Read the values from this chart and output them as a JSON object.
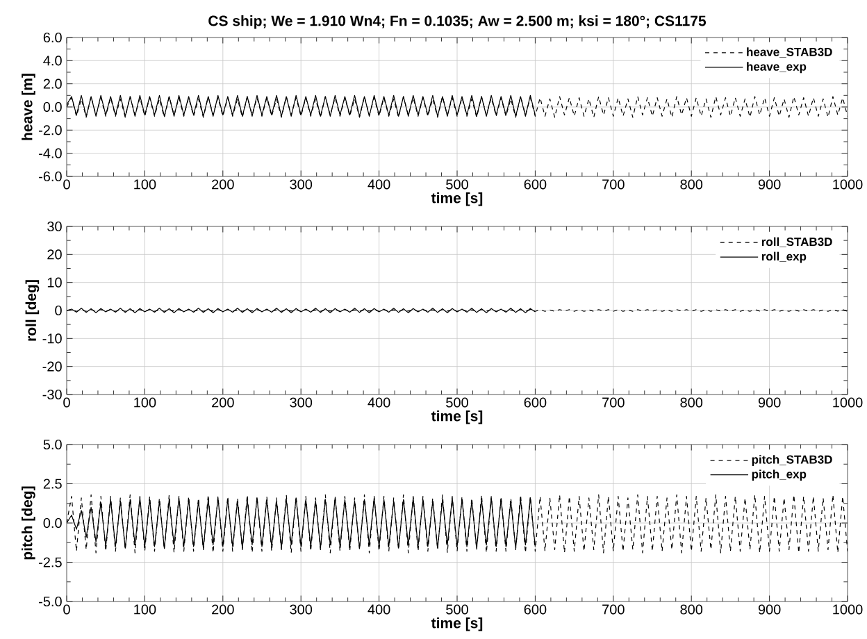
{
  "chart_data": [
    {
      "type": "line",
      "title": "CS ship; We = 1.910 Wn4; Fn = 0.1035; Aw = 2.500 m; ksi = 180°; CS1175",
      "xlabel": "time [s]",
      "ylabel": "heave [m]",
      "xlim": [
        0,
        1000
      ],
      "ylim": [
        -6,
        6
      ],
      "xticks": [
        0,
        100,
        200,
        300,
        400,
        500,
        600,
        700,
        800,
        900,
        1000
      ],
      "yticks": [
        {
          "value": -6,
          "label": "-6.0"
        },
        {
          "value": -4,
          "label": "-4.0"
        },
        {
          "value": -2,
          "label": "-2.0"
        },
        {
          "value": 0,
          "label": "0.0"
        },
        {
          "value": 2,
          "label": "2.0"
        },
        {
          "value": 4,
          "label": "4.0"
        },
        {
          "value": 6,
          "label": "6.0"
        }
      ],
      "grid": true,
      "legend": "top right",
      "marker": "none",
      "x": [
        0,
        6.25,
        12.5,
        18.75,
        25,
        31.25,
        37.5,
        43.75,
        50,
        56.25,
        62.5,
        68.75,
        75,
        81.25,
        87.5,
        93.75,
        100,
        106.25,
        112.5,
        118.75,
        125,
        131.25,
        137.5,
        143.75,
        150,
        156.25,
        162.5,
        168.75,
        175,
        181.25,
        187.5,
        193.75,
        200,
        206.25,
        212.5,
        218.75,
        225,
        231.25,
        237.5,
        243.75,
        250,
        256.25,
        262.5,
        268.75,
        275,
        281.25,
        287.5,
        293.75,
        300,
        306.25,
        312.5,
        318.75,
        325,
        331.25,
        337.5,
        343.75,
        350,
        356.25,
        362.5,
        368.75,
        375,
        381.25,
        387.5,
        393.75,
        400,
        406.25,
        412.5,
        418.75,
        425,
        431.25,
        437.5,
        443.75,
        450,
        456.25,
        462.5,
        468.75,
        475,
        481.25,
        487.5,
        493.75,
        500,
        506.25,
        512.5,
        518.75,
        525,
        531.25,
        537.5,
        543.75,
        550,
        556.25,
        562.5,
        568.75,
        575,
        581.25,
        587.5,
        593.75,
        600,
        606.25,
        612.5,
        618.75,
        625,
        631.25,
        637.5,
        643.75,
        650,
        656.25,
        662.5,
        668.75,
        675,
        681.25,
        687.5,
        693.75,
        700,
        706.25,
        712.5,
        718.75,
        725,
        731.25,
        737.5,
        743.75,
        750,
        756.25,
        762.5,
        768.75,
        775,
        781.25,
        787.5,
        793.75,
        800,
        806.25,
        812.5,
        818.75,
        825,
        831.25,
        837.5,
        843.75,
        850,
        856.25,
        862.5,
        868.75,
        875,
        881.25,
        887.5,
        893.75,
        900,
        906.25,
        912.5,
        918.75,
        925,
        931.25,
        937.5,
        943.75,
        950,
        956.25,
        962.5,
        968.75,
        975,
        981.25,
        987.5,
        993.75,
        1000
      ],
      "series": [
        {
          "name": "heave_STAB3D",
          "color": "#000000",
          "line_style": "dashed",
          "values": [
            0.0,
            0.8,
            -0.8,
            0.7,
            -0.9,
            0.9,
            -0.7,
            0.8,
            -0.8,
            0.8,
            -0.8,
            0.7,
            -0.9,
            0.9,
            -0.7,
            0.8,
            -0.8,
            0.8,
            -0.8,
            0.7,
            -0.9,
            0.9,
            -0.7,
            0.8,
            -0.8,
            0.8,
            -0.8,
            0.7,
            -0.9,
            0.9,
            -0.7,
            0.8,
            -0.8,
            0.8,
            -0.8,
            0.7,
            -0.9,
            0.9,
            -0.7,
            0.8,
            -0.8,
            0.8,
            -0.8,
            0.7,
            -0.9,
            0.9,
            -0.7,
            0.8,
            -0.8,
            0.8,
            -0.8,
            0.7,
            -0.9,
            0.9,
            -0.7,
            0.8,
            -0.8,
            0.8,
            -0.8,
            0.7,
            -0.9,
            0.9,
            -0.7,
            0.8,
            -0.8,
            0.8,
            -0.8,
            0.7,
            -0.9,
            0.9,
            -0.7,
            0.8,
            -0.8,
            0.8,
            -0.8,
            0.7,
            -0.9,
            0.9,
            -0.7,
            0.8,
            -0.8,
            0.8,
            -0.8,
            0.7,
            -0.9,
            0.9,
            -0.7,
            0.8,
            -0.8,
            0.8,
            -0.8,
            0.7,
            -0.9,
            0.9,
            -0.7,
            0.8,
            -0.8,
            0.8,
            -0.8,
            0.7,
            -0.9,
            0.9,
            -0.7,
            0.8,
            -0.8,
            0.8,
            -0.8,
            0.7,
            -0.9,
            0.9,
            -0.7,
            0.8,
            -0.8,
            0.8,
            -0.8,
            0.7,
            -0.9,
            0.9,
            -0.7,
            0.8,
            -0.8,
            0.8,
            -0.8,
            0.7,
            -0.9,
            0.9,
            -0.7,
            0.8,
            -0.8,
            0.8,
            -0.8,
            0.7,
            -0.9,
            0.9,
            -0.7,
            0.8,
            -0.8,
            0.8,
            -0.8,
            0.7,
            -0.9,
            0.9,
            -0.7,
            0.8,
            -0.8,
            0.8,
            -0.8,
            0.7,
            -0.9,
            0.9,
            -0.7,
            0.8,
            -0.8,
            0.8,
            -0.8,
            0.7,
            -0.9,
            0.9,
            -0.7,
            0.8,
            -0.8
          ]
        },
        {
          "name": "heave_exp",
          "color": "#000000",
          "line_style": "solid",
          "values": [
            0.2,
            0.9,
            -0.7,
            1.0,
            -0.8,
            0.9,
            -0.8,
            1.0,
            -0.7,
            0.9,
            -0.7,
            1.0,
            -0.8,
            0.9,
            -0.8,
            1.0,
            -0.7,
            0.9,
            -0.7,
            1.0,
            -0.8,
            0.9,
            -0.8,
            1.0,
            -0.7,
            0.9,
            -0.7,
            1.0,
            -0.8,
            0.9,
            -0.8,
            1.0,
            -0.7,
            0.9,
            -0.7,
            1.0,
            -0.8,
            0.9,
            -0.8,
            1.0,
            -0.7,
            0.9,
            -0.7,
            1.0,
            -0.8,
            0.9,
            -0.8,
            1.0,
            -0.7,
            0.9,
            -0.7,
            1.0,
            -0.8,
            0.9,
            -0.8,
            1.0,
            -0.7,
            0.9,
            -0.7,
            1.0,
            -0.8,
            0.9,
            -0.8,
            1.0,
            -0.7,
            0.9,
            -0.7,
            1.0,
            -0.8,
            0.9,
            -0.8,
            1.0,
            -0.7,
            0.9,
            -0.7,
            1.0,
            -0.8,
            0.9,
            -0.8,
            1.0,
            -0.7,
            0.9,
            -0.7,
            1.0,
            -0.8,
            0.9,
            -0.8,
            1.0,
            -0.7,
            0.9,
            -0.7,
            1.0,
            -0.8,
            0.9,
            -0.8,
            1.0,
            -0.7,
            null,
            null,
            null,
            null,
            null,
            null,
            null,
            null,
            null,
            null,
            null,
            null,
            null,
            null,
            null,
            null,
            null,
            null,
            null,
            null,
            null,
            null,
            null,
            null,
            null,
            null,
            null,
            null,
            null,
            null,
            null,
            null,
            null,
            null,
            null,
            null,
            null,
            null,
            null,
            null,
            null,
            null,
            null,
            null,
            null,
            null,
            null,
            null,
            null,
            null,
            null,
            null,
            null,
            null,
            null,
            null,
            null,
            null,
            null,
            null,
            null,
            null,
            null,
            null
          ]
        }
      ]
    },
    {
      "type": "line",
      "xlabel": "time [s]",
      "ylabel": "roll [deg]",
      "xlim": [
        0,
        1000
      ],
      "ylim": [
        -30,
        30
      ],
      "xticks": [
        0,
        100,
        200,
        300,
        400,
        500,
        600,
        700,
        800,
        900,
        1000
      ],
      "yticks": [
        -30,
        -20,
        -10,
        0,
        10,
        20,
        30
      ],
      "grid": true,
      "legend": "top right",
      "marker": "none",
      "x": [
        0,
        6.25,
        12.5,
        18.75,
        25,
        31.25,
        37.5,
        43.75,
        50,
        56.25,
        62.5,
        68.75,
        75,
        81.25,
        87.5,
        93.75,
        100,
        106.25,
        112.5,
        118.75,
        125,
        131.25,
        137.5,
        143.75,
        150,
        156.25,
        162.5,
        168.75,
        175,
        181.25,
        187.5,
        193.75,
        200,
        206.25,
        212.5,
        218.75,
        225,
        231.25,
        237.5,
        243.75,
        250,
        256.25,
        262.5,
        268.75,
        275,
        281.25,
        287.5,
        293.75,
        300,
        306.25,
        312.5,
        318.75,
        325,
        331.25,
        337.5,
        343.75,
        350,
        356.25,
        362.5,
        368.75,
        375,
        381.25,
        387.5,
        393.75,
        400,
        406.25,
        412.5,
        418.75,
        425,
        431.25,
        437.5,
        443.75,
        450,
        456.25,
        462.5,
        468.75,
        475,
        481.25,
        487.5,
        493.75,
        500,
        506.25,
        512.5,
        518.75,
        525,
        531.25,
        537.5,
        543.75,
        550,
        556.25,
        562.5,
        568.75,
        575,
        581.25,
        587.5,
        593.75,
        600,
        606.25,
        612.5,
        618.75,
        625,
        631.25,
        637.5,
        643.75,
        650,
        656.25,
        662.5,
        668.75,
        675,
        681.25,
        687.5,
        693.75,
        700,
        706.25,
        712.5,
        718.75,
        725,
        731.25,
        737.5,
        743.75,
        750,
        756.25,
        762.5,
        768.75,
        775,
        781.25,
        787.5,
        793.75,
        800,
        806.25,
        812.5,
        818.75,
        825,
        831.25,
        837.5,
        843.75,
        850,
        856.25,
        862.5,
        868.75,
        875,
        881.25,
        887.5,
        893.75,
        900,
        906.25,
        912.5,
        918.75,
        925,
        931.25,
        937.5,
        943.75,
        950,
        956.25,
        962.5,
        968.75,
        975,
        981.25,
        987.5,
        993.75,
        1000
      ],
      "series": [
        {
          "name": "roll_STAB3D",
          "color": "#000000",
          "line_style": "dashed",
          "values": [
            0,
            0.3,
            -0.3,
            0.2,
            -0.3,
            0.3,
            -0.2,
            0.3,
            -0.3,
            0.3,
            -0.3,
            0.2,
            -0.3,
            0.3,
            -0.2,
            0.3,
            -0.3,
            0.3,
            -0.3,
            0.2,
            -0.3,
            0.3,
            -0.2,
            0.3,
            -0.3,
            0.3,
            -0.3,
            0.2,
            -0.3,
            0.3,
            -0.2,
            0.3,
            -0.3,
            0.3,
            -0.3,
            0.2,
            -0.3,
            0.3,
            -0.2,
            0.3,
            -0.3,
            0.3,
            -0.3,
            0.2,
            -0.3,
            0.3,
            -0.2,
            0.3,
            -0.3,
            0.3,
            -0.3,
            0.2,
            -0.3,
            0.3,
            -0.2,
            0.3,
            -0.3,
            0.3,
            -0.3,
            0.2,
            -0.3,
            0.3,
            -0.2,
            0.3,
            -0.3,
            0.3,
            -0.3,
            0.2,
            -0.3,
            0.3,
            -0.2,
            0.3,
            -0.3,
            0.3,
            -0.3,
            0.2,
            -0.3,
            0.3,
            -0.2,
            0.3,
            -0.3,
            0.3,
            -0.3,
            0.2,
            -0.3,
            0.3,
            -0.2,
            0.3,
            -0.3,
            0.3,
            -0.3,
            0.2,
            -0.3,
            0.3,
            -0.2,
            0.3,
            -0.3,
            0.3,
            -0.3,
            0.2,
            -0.3,
            0.3,
            -0.2,
            0.3,
            -0.3,
            0.3,
            -0.3,
            0.2,
            -0.3,
            0.3,
            -0.2,
            0.3,
            -0.3,
            0.3,
            -0.3,
            0.2,
            -0.3,
            0.3,
            -0.2,
            0.3,
            -0.3,
            0.3,
            -0.3,
            0.2,
            -0.3,
            0.3,
            -0.2,
            0.3,
            -0.3,
            0.3,
            -0.3,
            0.2,
            -0.3,
            0.3,
            -0.2,
            0.3,
            -0.3,
            0.3,
            -0.3,
            0.2,
            -0.3,
            0.3,
            -0.2,
            0.3,
            -0.3,
            0.3,
            -0.3,
            0.2,
            -0.3,
            0.3,
            -0.2,
            0.3,
            -0.3,
            0.3,
            -0.3,
            0.2,
            -0.3,
            0.3,
            -0.2,
            0.3,
            -0.3
          ]
        },
        {
          "name": "roll_exp",
          "color": "#000000",
          "line_style": "solid",
          "values": [
            0,
            0.5,
            -0.6,
            0.8,
            -0.7,
            0.6,
            -0.8,
            0.7,
            -0.5,
            0.5,
            -0.6,
            0.8,
            -0.7,
            0.6,
            -0.8,
            0.7,
            -0.5,
            0.5,
            -0.6,
            0.8,
            -0.7,
            0.6,
            -0.8,
            0.7,
            -0.5,
            0.5,
            -0.6,
            0.8,
            -0.7,
            0.6,
            -0.8,
            0.7,
            -0.5,
            0.5,
            -0.6,
            0.8,
            -0.7,
            0.6,
            -0.8,
            0.7,
            -0.5,
            0.5,
            -0.6,
            0.8,
            -0.7,
            0.6,
            -0.8,
            0.7,
            -0.5,
            0.5,
            -0.6,
            0.8,
            -0.7,
            0.6,
            -0.8,
            0.7,
            -0.5,
            0.5,
            -0.6,
            0.8,
            -0.7,
            0.6,
            -0.8,
            0.7,
            -0.5,
            0.5,
            -0.6,
            0.8,
            -0.7,
            0.6,
            -0.8,
            0.7,
            -0.5,
            0.5,
            -0.6,
            0.8,
            -0.7,
            0.6,
            -0.8,
            0.7,
            -0.5,
            0.5,
            -0.6,
            0.8,
            -0.7,
            0.6,
            -0.8,
            0.7,
            -0.5,
            0.5,
            -0.6,
            0.8,
            -0.7,
            0.6,
            -0.8,
            0.7,
            -0.5,
            null,
            null,
            null,
            null,
            null,
            null,
            null,
            null,
            null,
            null,
            null,
            null,
            null,
            null,
            null,
            null,
            null,
            null,
            null,
            null,
            null,
            null,
            null,
            null,
            null,
            null,
            null,
            null,
            null,
            null,
            null,
            null,
            null,
            null,
            null,
            null,
            null,
            null,
            null,
            null,
            null,
            null,
            null,
            null,
            null,
            null,
            null,
            null,
            null,
            null,
            null,
            null,
            null,
            null,
            null,
            null,
            null,
            null,
            null,
            null,
            null,
            null,
            null,
            null
          ]
        }
      ]
    },
    {
      "type": "line",
      "xlabel": "time [s]",
      "ylabel": "pitch [deg]",
      "xlim": [
        0,
        1000
      ],
      "ylim": [
        -5,
        5
      ],
      "xticks": [
        0,
        100,
        200,
        300,
        400,
        500,
        600,
        700,
        800,
        900,
        1000
      ],
      "yticks": [
        {
          "value": -5,
          "label": "-5.0"
        },
        {
          "value": -2.5,
          "label": "-2.5"
        },
        {
          "value": 0,
          "label": "0.0"
        },
        {
          "value": 2.5,
          "label": "2.5"
        },
        {
          "value": 5,
          "label": "5.0"
        }
      ],
      "grid": true,
      "legend": "top right",
      "marker": "none",
      "x": [
        0,
        6.25,
        12.5,
        18.75,
        25,
        31.25,
        37.5,
        43.75,
        50,
        56.25,
        62.5,
        68.75,
        75,
        81.25,
        87.5,
        93.75,
        100,
        106.25,
        112.5,
        118.75,
        125,
        131.25,
        137.5,
        143.75,
        150,
        156.25,
        162.5,
        168.75,
        175,
        181.25,
        187.5,
        193.75,
        200,
        206.25,
        212.5,
        218.75,
        225,
        231.25,
        237.5,
        243.75,
        250,
        256.25,
        262.5,
        268.75,
        275,
        281.25,
        287.5,
        293.75,
        300,
        306.25,
        312.5,
        318.75,
        325,
        331.25,
        337.5,
        343.75,
        350,
        356.25,
        362.5,
        368.75,
        375,
        381.25,
        387.5,
        393.75,
        400,
        406.25,
        412.5,
        418.75,
        425,
        431.25,
        437.5,
        443.75,
        450,
        456.25,
        462.5,
        468.75,
        475,
        481.25,
        487.5,
        493.75,
        500,
        506.25,
        512.5,
        518.75,
        525,
        531.25,
        537.5,
        543.75,
        550,
        556.25,
        562.5,
        568.75,
        575,
        581.25,
        587.5,
        593.75,
        600,
        606.25,
        612.5,
        618.75,
        625,
        631.25,
        637.5,
        643.75,
        650,
        656.25,
        662.5,
        668.75,
        675,
        681.25,
        687.5,
        693.75,
        700,
        706.25,
        712.5,
        718.75,
        725,
        731.25,
        737.5,
        743.75,
        750,
        756.25,
        762.5,
        768.75,
        775,
        781.25,
        787.5,
        793.75,
        800,
        806.25,
        812.5,
        818.75,
        825,
        831.25,
        837.5,
        843.75,
        850,
        856.25,
        862.5,
        868.75,
        875,
        881.25,
        887.5,
        893.75,
        900,
        906.25,
        912.5,
        918.75,
        925,
        931.25,
        937.5,
        943.75,
        950,
        956.25,
        962.5,
        968.75,
        975,
        981.25,
        987.5,
        993.75,
        1000
      ],
      "series": [
        {
          "name": "pitch_STAB3D",
          "color": "#000000",
          "line_style": "dashed",
          "values": [
            0.0,
            1.7,
            -1.8,
            1.6,
            -1.7,
            1.8,
            -1.9,
            1.7,
            -1.8,
            1.7,
            -1.8,
            1.6,
            -1.7,
            1.8,
            -1.9,
            1.7,
            -1.8,
            1.7,
            -1.8,
            1.6,
            -1.7,
            1.8,
            -1.9,
            1.7,
            -1.8,
            1.7,
            -1.8,
            1.6,
            -1.7,
            1.8,
            -1.9,
            1.7,
            -1.8,
            1.7,
            -1.8,
            1.6,
            -1.7,
            1.8,
            -1.9,
            1.7,
            -1.8,
            1.7,
            -1.8,
            1.6,
            -1.7,
            1.8,
            -1.9,
            1.7,
            -1.8,
            1.7,
            -1.8,
            1.6,
            -1.7,
            1.8,
            -1.9,
            1.7,
            -1.8,
            1.7,
            -1.8,
            1.6,
            -1.7,
            1.8,
            -1.9,
            1.7,
            -1.8,
            1.7,
            -1.8,
            1.6,
            -1.7,
            1.8,
            -1.9,
            1.7,
            -1.8,
            1.7,
            -1.8,
            1.6,
            -1.7,
            1.8,
            -1.9,
            1.7,
            -1.8,
            1.7,
            -1.8,
            1.6,
            -1.7,
            1.8,
            -1.9,
            1.7,
            -1.8,
            1.7,
            -1.8,
            1.6,
            -1.7,
            1.8,
            -1.9,
            1.7,
            -1.8,
            1.7,
            -1.8,
            1.6,
            -1.7,
            1.8,
            -1.9,
            1.7,
            -1.8,
            1.7,
            -1.8,
            1.6,
            -1.7,
            1.8,
            -1.9,
            1.7,
            -1.8,
            1.7,
            -1.8,
            1.6,
            -1.7,
            1.8,
            -1.9,
            1.7,
            -1.8,
            1.7,
            -1.8,
            1.6,
            -1.7,
            1.8,
            -1.9,
            1.7,
            -1.8,
            1.7,
            -1.8,
            1.6,
            -1.7,
            1.8,
            -1.9,
            1.7,
            -1.8,
            1.7,
            -1.8,
            1.6,
            -1.7,
            1.8,
            -1.9,
            1.7,
            -1.8,
            1.7,
            -1.8,
            1.6,
            -1.7,
            1.8,
            -1.9,
            1.7,
            -1.8,
            1.7,
            -1.8,
            1.6,
            -1.7,
            1.8,
            -1.9,
            1.7,
            -1.8
          ]
        },
        {
          "name": "pitch_exp",
          "color": "#000000",
          "line_style": "solid",
          "values": [
            0.0,
            0.5,
            -0.4,
            0.8,
            -0.9,
            1.0,
            -1.2,
            1.3,
            -1.5,
            1.5,
            -1.5,
            1.4,
            -1.6,
            1.5,
            -1.4,
            1.6,
            -1.5,
            1.5,
            -1.5,
            1.4,
            -1.6,
            1.5,
            -1.4,
            1.6,
            -1.5,
            1.5,
            -1.5,
            1.4,
            -1.6,
            1.5,
            -1.4,
            1.6,
            -1.5,
            1.5,
            -1.5,
            1.4,
            -1.6,
            1.5,
            -1.4,
            1.6,
            -1.5,
            1.5,
            -1.5,
            1.4,
            -1.6,
            1.5,
            -1.4,
            1.6,
            -1.5,
            1.5,
            -1.5,
            1.4,
            -1.6,
            1.5,
            -1.4,
            1.6,
            -1.5,
            1.5,
            -1.5,
            1.4,
            -1.6,
            1.5,
            -1.4,
            1.6,
            -1.5,
            1.5,
            -1.5,
            1.4,
            -1.6,
            1.5,
            -1.4,
            1.6,
            -1.5,
            1.5,
            -1.5,
            1.4,
            -1.6,
            1.5,
            -1.4,
            1.6,
            -1.5,
            1.5,
            -1.5,
            1.4,
            -1.6,
            1.5,
            -1.4,
            1.6,
            -1.5,
            1.5,
            -1.5,
            1.4,
            -1.6,
            1.5,
            -1.4,
            1.6,
            -1.5,
            null,
            null,
            null,
            null,
            null,
            null,
            null,
            null,
            null,
            null,
            null,
            null,
            null,
            null,
            null,
            null,
            null,
            null,
            null,
            null,
            null,
            null,
            null,
            null,
            null,
            null,
            null,
            null,
            null,
            null,
            null,
            null,
            null,
            null,
            null,
            null,
            null,
            null,
            null,
            null,
            null,
            null,
            null,
            null,
            null,
            null,
            null,
            null,
            null,
            null,
            null,
            null,
            null,
            null,
            null,
            null,
            null,
            null,
            null,
            null,
            null,
            null,
            null,
            null
          ]
        }
      ]
    }
  ]
}
